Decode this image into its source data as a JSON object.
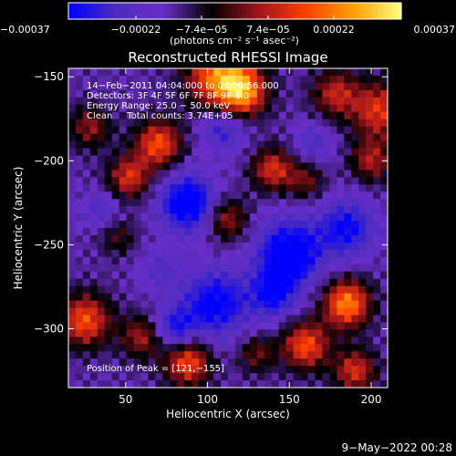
{
  "chart_data": {
    "type": "heatmap",
    "title": "Reconstructed RHESSI Image",
    "xlabel": "Heliocentric X (arcsec)",
    "ylabel": "Heliocentric Y (arcsec)",
    "xlim": [
      15,
      210
    ],
    "ylim": [
      -335,
      -145
    ],
    "x_ticks": [
      50,
      100,
      150,
      200
    ],
    "x_tick_labels": [
      "50",
      "100",
      "150",
      "200"
    ],
    "y_ticks": [
      -150,
      -200,
      -250,
      -300
    ],
    "y_tick_labels": [
      "−150",
      "−200",
      "−250",
      "−300"
    ],
    "colorbar": {
      "range": [
        -0.00037,
        0.00037
      ],
      "ticks": [
        -0.00037,
        -0.00022,
        -7.4e-05,
        7.4e-05,
        0.00022,
        0.00037
      ],
      "tick_labels": [
        "−0.00037",
        "−0.00022",
        "−7.4e−05",
        "7.4e−05",
        "0.00022",
        "0.00037"
      ],
      "unit_label": "(photons cm⁻² s⁻¹ asec⁻²)"
    },
    "annotations": {
      "line1": "14−Feb−2011 04:04:000 to 04:06:56.000",
      "line2": "Detectors: 3F 4F 5F 6F 7F 8F 9F 1.0",
      "line3": "Energy Range: 25.0 − 50.0 keV",
      "line4": "Clean     Total counts: 3.74E+05",
      "peak": "Position of Peak = [121,−155]"
    },
    "peak_position": [
      121,
      -155
    ],
    "grid": false,
    "colormap": [
      "#0000ff",
      "#4b2cbf",
      "#6a2ec8",
      "#000000",
      "#a0141e",
      "#ff4000",
      "#ffa000",
      "#ffff80"
    ],
    "blobs": [
      {
        "x": 108,
        "y": -150,
        "value": 0.00037,
        "sigma": 14
      },
      {
        "x": 122,
        "y": -160,
        "value": 0.0003,
        "sigma": 10
      },
      {
        "x": 70,
        "y": -190,
        "value": 0.0003,
        "sigma": 10
      },
      {
        "x": 52,
        "y": -210,
        "value": 0.00025,
        "sigma": 9
      },
      {
        "x": 28,
        "y": -180,
        "value": 0.00018,
        "sigma": 9
      },
      {
        "x": 178,
        "y": -160,
        "value": 0.00022,
        "sigma": 10
      },
      {
        "x": 205,
        "y": -170,
        "value": 0.00026,
        "sigma": 12
      },
      {
        "x": 200,
        "y": -200,
        "value": 0.0002,
        "sigma": 9
      },
      {
        "x": 140,
        "y": -205,
        "value": 0.00025,
        "sigma": 9
      },
      {
        "x": 160,
        "y": -212,
        "value": 0.00015,
        "sigma": 8
      },
      {
        "x": 112,
        "y": -235,
        "value": 0.0002,
        "sigma": 9
      },
      {
        "x": 185,
        "y": -285,
        "value": 0.00037,
        "sigma": 10
      },
      {
        "x": 25,
        "y": -295,
        "value": 0.0003,
        "sigma": 11
      },
      {
        "x": 60,
        "y": -305,
        "value": 0.0002,
        "sigma": 9
      },
      {
        "x": 88,
        "y": -320,
        "value": 0.0003,
        "sigma": 10
      },
      {
        "x": 160,
        "y": -310,
        "value": 0.0003,
        "sigma": 10
      },
      {
        "x": 190,
        "y": -325,
        "value": 0.00025,
        "sigma": 9
      },
      {
        "x": 130,
        "y": -315,
        "value": 0.00015,
        "sigma": 8
      },
      {
        "x": 45,
        "y": -245,
        "value": 0.00012,
        "sigma": 8
      },
      {
        "x": 72,
        "y": -265,
        "value": -0.0001,
        "sigma": 9
      },
      {
        "x": 105,
        "y": -285,
        "value": -0.00025,
        "sigma": 14
      },
      {
        "x": 88,
        "y": -225,
        "value": -0.0003,
        "sigma": 12
      },
      {
        "x": 150,
        "y": -255,
        "value": -0.0003,
        "sigma": 14
      },
      {
        "x": 185,
        "y": -240,
        "value": -0.00022,
        "sigma": 12
      },
      {
        "x": 110,
        "y": -180,
        "value": -0.00018,
        "sigma": 10
      },
      {
        "x": 165,
        "y": -190,
        "value": -0.00012,
        "sigma": 8
      },
      {
        "x": 140,
        "y": -280,
        "value": -0.0002,
        "sigma": 10
      },
      {
        "x": 80,
        "y": -300,
        "value": -0.0002,
        "sigma": 9
      },
      {
        "x": 35,
        "y": -230,
        "value": -0.00012,
        "sigma": 8
      }
    ],
    "base_value": -0.00014
  },
  "footer": {
    "timestamp": "9−May−2022 00:28"
  }
}
